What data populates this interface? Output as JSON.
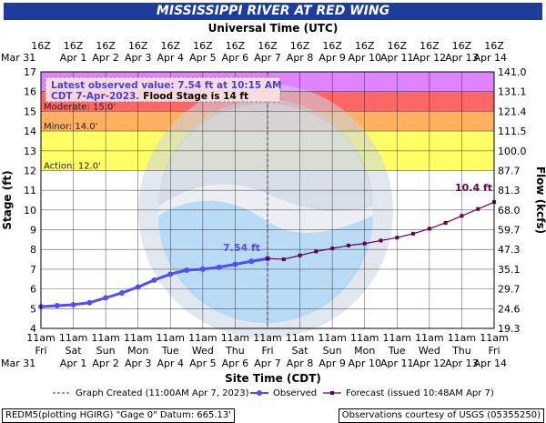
{
  "header": {
    "title": "MISSISSIPPI RIVER AT RED WING"
  },
  "chart_data": {
    "type": "line",
    "title": "MISSISSIPPI RIVER AT RED WING",
    "top_axis_title": "Universal Time (UTC)",
    "xlabel": "Site Time (CDT)",
    "ylabel": "Stage (ft)",
    "y2label": "Flow (kcfs)",
    "ylim": [
      4,
      17
    ],
    "y_ticks": [
      "4",
      "5",
      "6",
      "7",
      "8",
      "9",
      "10",
      "11",
      "12",
      "13",
      "14",
      "15",
      "16",
      "17"
    ],
    "y2_ticks": [
      {
        "stage": 4,
        "label": "19.3"
      },
      {
        "stage": 5,
        "label": "24.6"
      },
      {
        "stage": 6,
        "label": "29.7"
      },
      {
        "stage": 7,
        "label": "35.1"
      },
      {
        "stage": 8,
        "label": "47.3"
      },
      {
        "stage": 9,
        "label": "59.7"
      },
      {
        "stage": 10,
        "label": "68.0"
      },
      {
        "stage": 11,
        "label": "81.3"
      },
      {
        "stage": 12,
        "label": "87.7"
      },
      {
        "stage": 13,
        "label": "100.0"
      },
      {
        "stage": 14,
        "label": "111.5"
      },
      {
        "stage": 15,
        "label": "121.4"
      },
      {
        "stage": 16,
        "label": "131.1"
      },
      {
        "stage": 17,
        "label": "141.0"
      }
    ],
    "x_ticks_bottom": [
      {
        "l1": "11am",
        "l2": "Fri",
        "l3": "Mar 31"
      },
      {
        "l1": "11am",
        "l2": "Sat",
        "l3": "Apr 1"
      },
      {
        "l1": "11am",
        "l2": "Sun",
        "l3": "Apr 2"
      },
      {
        "l1": "11am",
        "l2": "Mon",
        "l3": "Apr 3"
      },
      {
        "l1": "11am",
        "l2": "Tue",
        "l3": "Apr 4"
      },
      {
        "l1": "11am",
        "l2": "Wed",
        "l3": "Apr 5"
      },
      {
        "l1": "11am",
        "l2": "Thu",
        "l3": "Apr 6"
      },
      {
        "l1": "11am",
        "l2": "Fri",
        "l3": "Apr 7"
      },
      {
        "l1": "11am",
        "l2": "Sat",
        "l3": "Apr 8"
      },
      {
        "l1": "11am",
        "l2": "Sun",
        "l3": "Apr 9"
      },
      {
        "l1": "11am",
        "l2": "Mon",
        "l3": "Apr 10"
      },
      {
        "l1": "11am",
        "l2": "Tue",
        "l3": "Apr 11"
      },
      {
        "l1": "11am",
        "l2": "Wed",
        "l3": "Apr 12"
      },
      {
        "l1": "11am",
        "l2": "Thu",
        "l3": "Apr 13"
      },
      {
        "l1": "11am",
        "l2": "Fri",
        "l3": "Apr 14"
      }
    ],
    "x_ticks_top": [
      {
        "l1": "16Z",
        "l2": "Mar 31"
      },
      {
        "l1": "16Z",
        "l2": "Apr 1"
      },
      {
        "l1": "16Z",
        "l2": "Apr 2"
      },
      {
        "l1": "16Z",
        "l2": "Apr 3"
      },
      {
        "l1": "16Z",
        "l2": "Apr 4"
      },
      {
        "l1": "16Z",
        "l2": "Apr 5"
      },
      {
        "l1": "16Z",
        "l2": "Apr 6"
      },
      {
        "l1": "16Z",
        "l2": "Apr 7"
      },
      {
        "l1": "16Z",
        "l2": "Apr 8"
      },
      {
        "l1": "16Z",
        "l2": "Apr 9"
      },
      {
        "l1": "16Z",
        "l2": "Apr 10"
      },
      {
        "l1": "16Z",
        "l2": "Apr 11"
      },
      {
        "l1": "16Z",
        "l2": "Apr 12"
      },
      {
        "l1": "16Z",
        "l2": "Apr 13"
      },
      {
        "l1": "16Z",
        "l2": "Apr 14"
      }
    ],
    "flood_categories": [
      {
        "name": "action",
        "label": "Action: 12.0'",
        "from": 12,
        "to": 14,
        "color": "#ffff66"
      },
      {
        "name": "minor",
        "label": "Minor: 14.0'",
        "from": 14,
        "to": 15,
        "color": "#ffb060"
      },
      {
        "name": "moderate",
        "label": "Moderate: 15.0'",
        "from": 15,
        "to": 16,
        "color": "#ff6666"
      },
      {
        "name": "major",
        "label": "",
        "from": 16,
        "to": 17,
        "color": "#e083ff"
      }
    ],
    "observed": {
      "color": "#4f4ff5",
      "x_days": [
        0,
        0.5,
        1,
        1.5,
        2,
        2.5,
        3,
        3.5,
        4,
        4.5,
        5,
        5.5,
        6,
        6.5,
        7.0
      ],
      "stage": [
        5.1,
        5.15,
        5.2,
        5.3,
        5.55,
        5.8,
        6.1,
        6.45,
        6.75,
        6.95,
        7.0,
        7.1,
        7.25,
        7.4,
        7.54
      ]
    },
    "forecast": {
      "color": "#660055",
      "x_days": [
        7.0,
        7.5,
        8.0,
        8.5,
        9.0,
        9.5,
        10.0,
        10.5,
        11.0,
        11.5,
        12.0,
        12.5,
        13.0,
        13.5,
        14.0
      ],
      "stage": [
        7.54,
        7.5,
        7.7,
        7.9,
        8.05,
        8.2,
        8.3,
        8.45,
        8.6,
        8.8,
        9.05,
        9.35,
        9.7,
        10.05,
        10.4
      ]
    },
    "annotations": {
      "obs_label": "7.54 ft",
      "fcst_label": "10.4 ft",
      "latest_line1": "Latest observed value: 7.54 ft at 10:15 AM",
      "latest_line2_a": "CDT 7-Apr-2023.",
      "latest_line2_b": "Flood Stage is 14 ft"
    },
    "legend": {
      "created": "Graph Created (11:00AM Apr 7, 2023)",
      "observed": "Observed",
      "forecast": "Forecast (issued 10:48AM Apr 7)"
    }
  },
  "footer": {
    "left": "REDM5(plotting HGIRG) \"Gage 0\" Datum: 665.13'",
    "right": "Observations courtesy of USGS (05355250)"
  }
}
